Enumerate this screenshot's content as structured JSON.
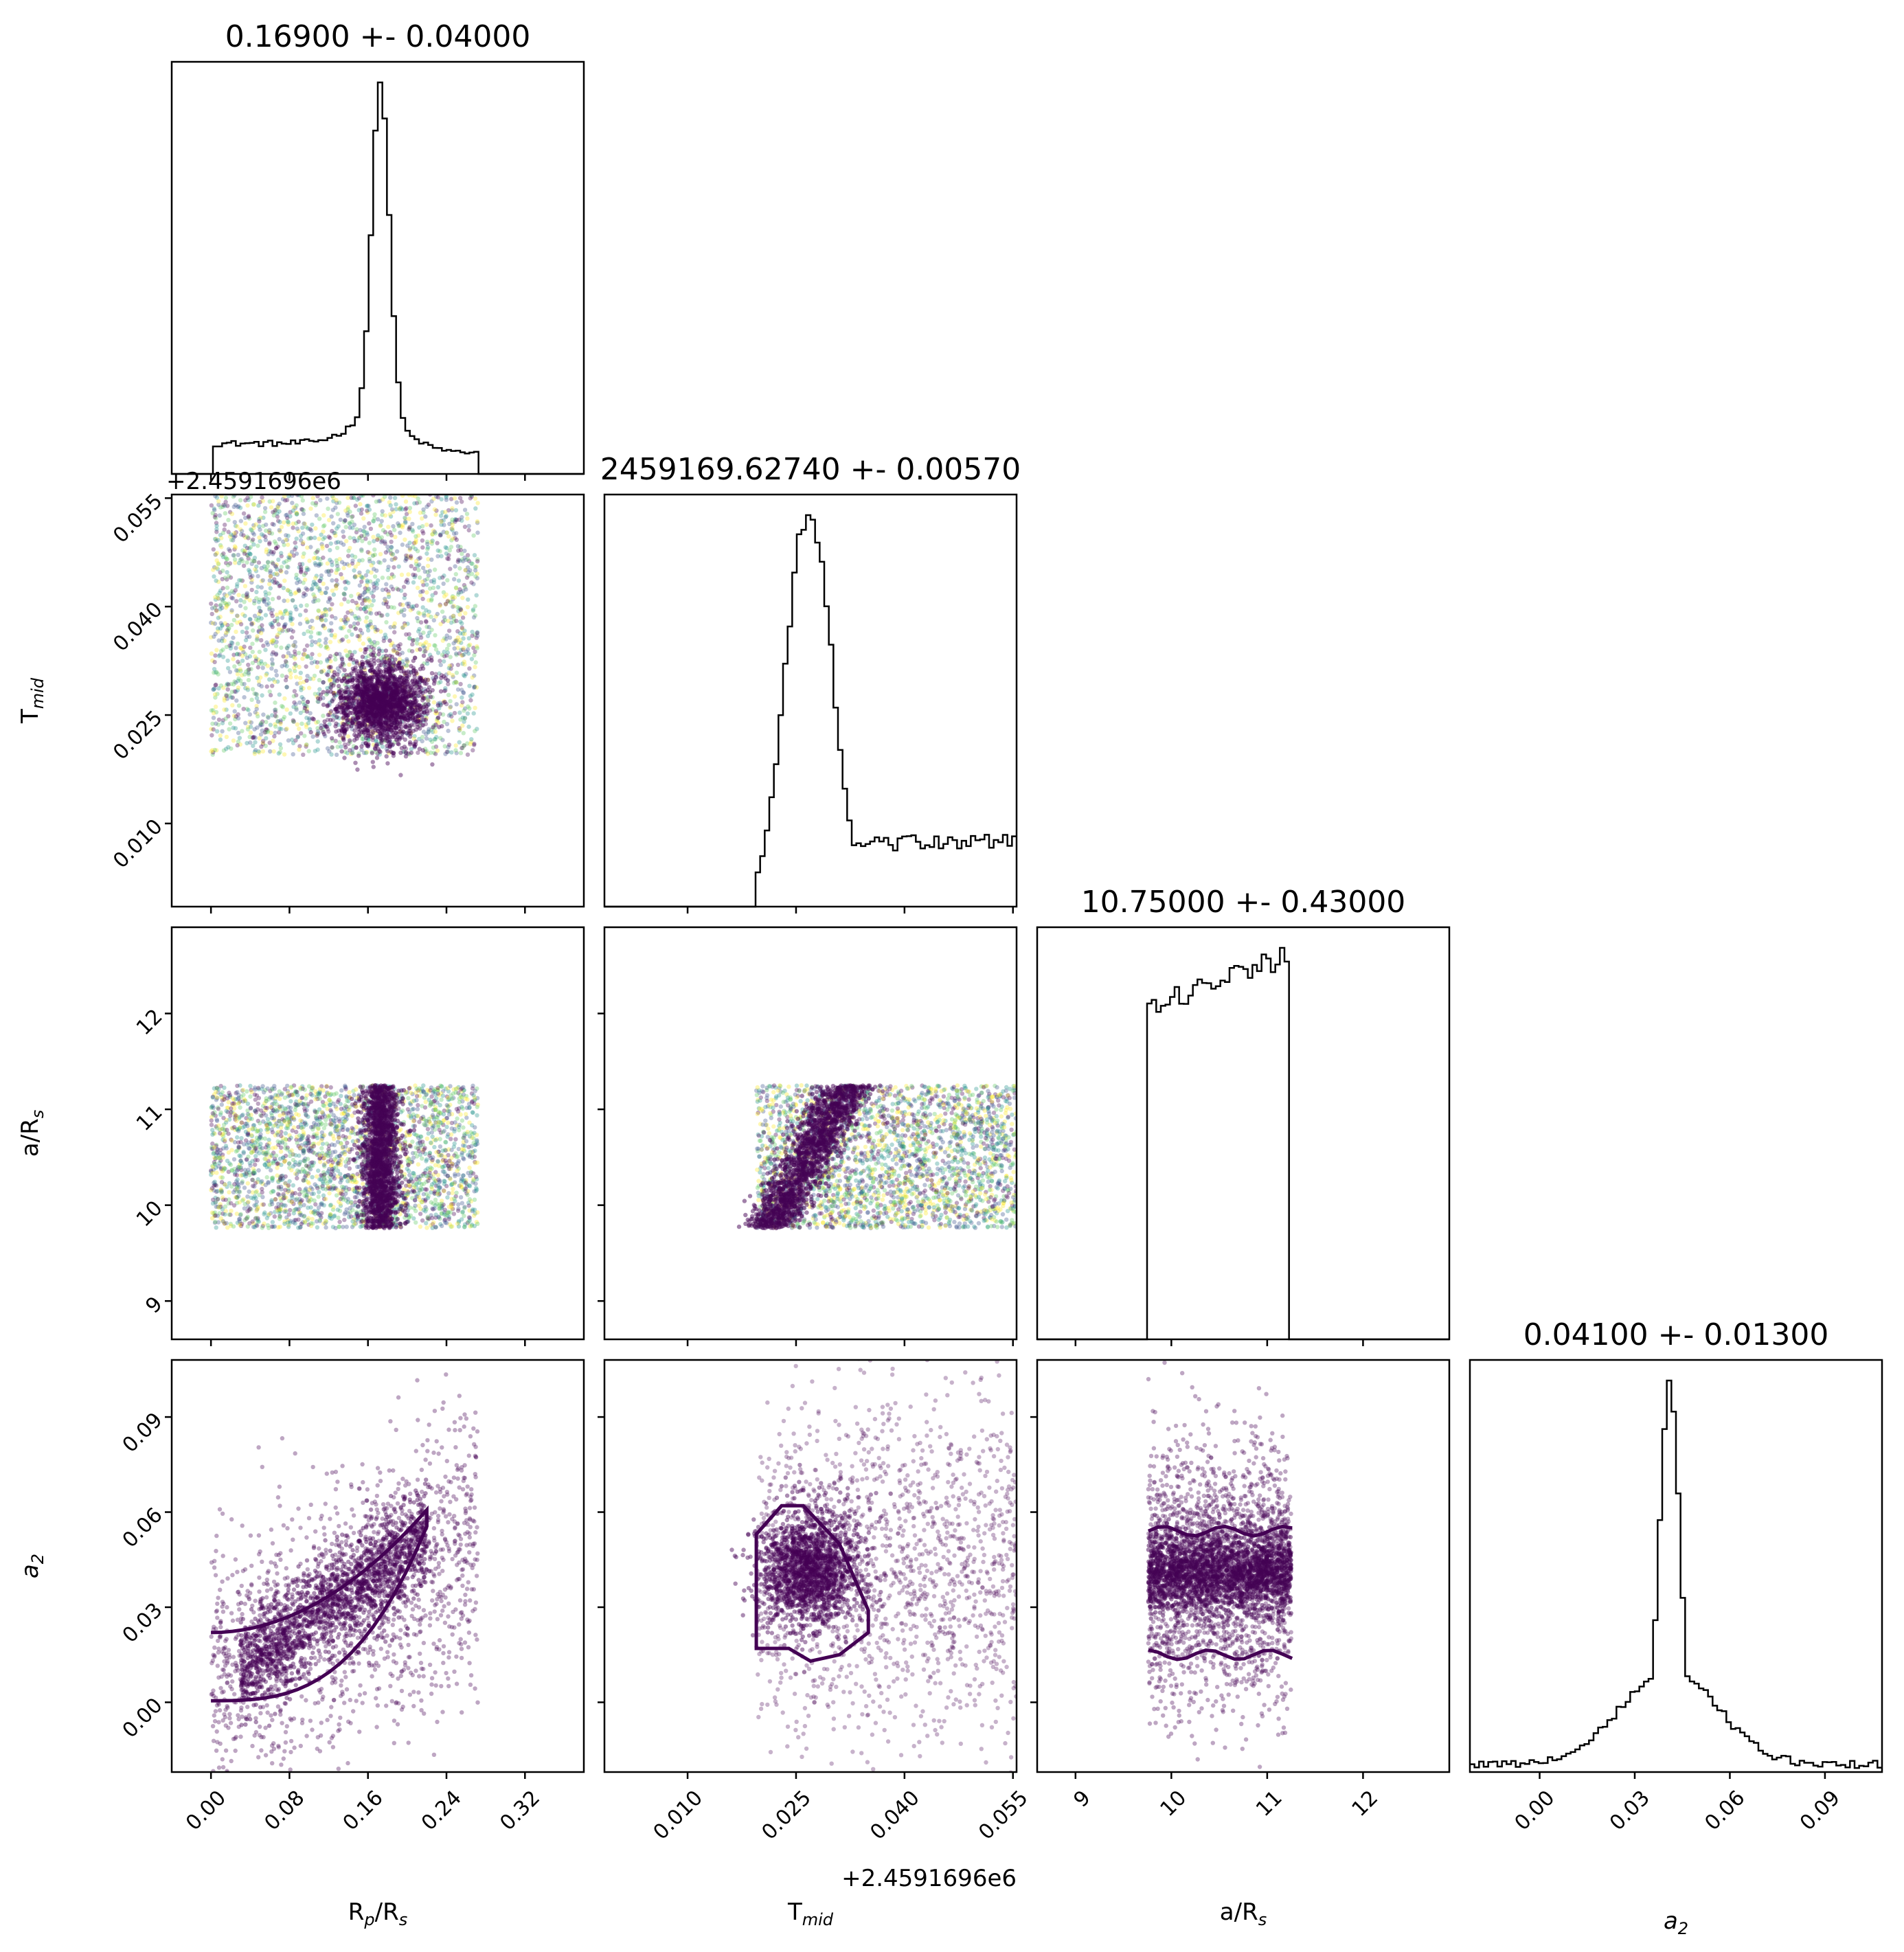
{
  "chart_data": {
    "type": "scatter",
    "subtype": "corner-plot",
    "parameters": [
      {
        "key": "rprs",
        "label_base": "R",
        "label_sub": "p",
        "label_mid": "/R",
        "label_sub2": "s",
        "title": "0.16900 +- 0.04000",
        "range": [
          -0.04,
          0.38
        ],
        "ticks": [
          0.0,
          0.08,
          0.16,
          0.24,
          0.32
        ],
        "tick_labels": [
          "0.00",
          "0.08",
          "0.16",
          "0.24",
          "0.32"
        ],
        "center": 0.169,
        "width": 0.04
      },
      {
        "key": "tmid",
        "label_base": "T",
        "label_sub": "mid",
        "label_mid": "",
        "label_sub2": "",
        "title": "2459169.62740 +- 0.00570",
        "range": [
          -0.0015,
          0.0555
        ],
        "ticks": [
          0.01,
          0.025,
          0.04,
          0.055
        ],
        "tick_labels": [
          "0.010",
          "0.025",
          "0.040",
          "0.055"
        ],
        "offset": "+2.4591696e6",
        "center": 0.0274,
        "width": 0.0057
      },
      {
        "key": "ars",
        "label_base": "a/R",
        "label_sub": "s",
        "label_mid": "",
        "label_sub2": "",
        "title": "10.75000 +- 0.43000",
        "range": [
          8.6,
          12.9
        ],
        "ticks": [
          9,
          10,
          11,
          12
        ],
        "tick_labels": [
          "9",
          "10",
          "11",
          "12"
        ],
        "center": 10.75,
        "width": 0.43
      },
      {
        "key": "a2",
        "label_base": "a",
        "label_sub": "2",
        "label_mid": "",
        "label_sub2": "",
        "italic": true,
        "title": "0.04100 +- 0.01300",
        "range": [
          -0.022,
          0.108
        ],
        "ticks": [
          0.0,
          0.03,
          0.06,
          0.09
        ],
        "tick_labels": [
          "0.00",
          "0.03",
          "0.06",
          "0.09"
        ],
        "center": 0.041,
        "width": 0.013
      }
    ],
    "histograms": [
      {
        "param": "rprs",
        "bins_range": [
          0.0,
          0.27
        ],
        "shape": "flat-plus-peak",
        "peak": 0.173,
        "peak_width": 0.009,
        "flat_level": 0.09,
        "cutoff_left": 0.0,
        "cutoff_right": 0.272
      },
      {
        "param": "tmid",
        "bins_range": [
          0.0195,
          0.0555
        ],
        "shape": "peak-plus-tail",
        "peak": 0.0268,
        "peak_width": 0.0032,
        "flat_level": 0.16,
        "cutoff_left": 0.0195
      },
      {
        "param": "ars",
        "bins_range": [
          9.75,
          11.25
        ],
        "shape": "flat-box",
        "flat_level": 0.86,
        "cutoff_left": 9.76,
        "cutoff_right": 11.25
      },
      {
        "param": "a2",
        "bins_range": [
          -0.022,
          0.108
        ],
        "shape": "peak",
        "peak": 0.041,
        "peak_width": 0.0032,
        "flat_level": 0.02
      }
    ],
    "scatter_panels": [
      {
        "x": "rprs",
        "y": "tmid",
        "points": "uniform-box-plus-cluster",
        "colored": true
      },
      {
        "x": "rprs",
        "y": "ars",
        "points": "uniform-box-plus-band",
        "colored": true
      },
      {
        "x": "tmid",
        "y": "ars",
        "points": "uniform-box-plus-diagonal",
        "colored": true
      },
      {
        "x": "rprs",
        "y": "a2",
        "points": "correlated",
        "contour": true
      },
      {
        "x": "tmid",
        "y": "a2",
        "points": "cluster-plus-tail",
        "contour": true
      },
      {
        "x": "ars",
        "y": "a2",
        "points": "band",
        "contour": true
      }
    ],
    "colors": {
      "main": "#440154",
      "line": "#000000",
      "scatter_palette": [
        "#440154",
        "#3b528b",
        "#21918c",
        "#5ec962",
        "#fde725"
      ]
    }
  }
}
